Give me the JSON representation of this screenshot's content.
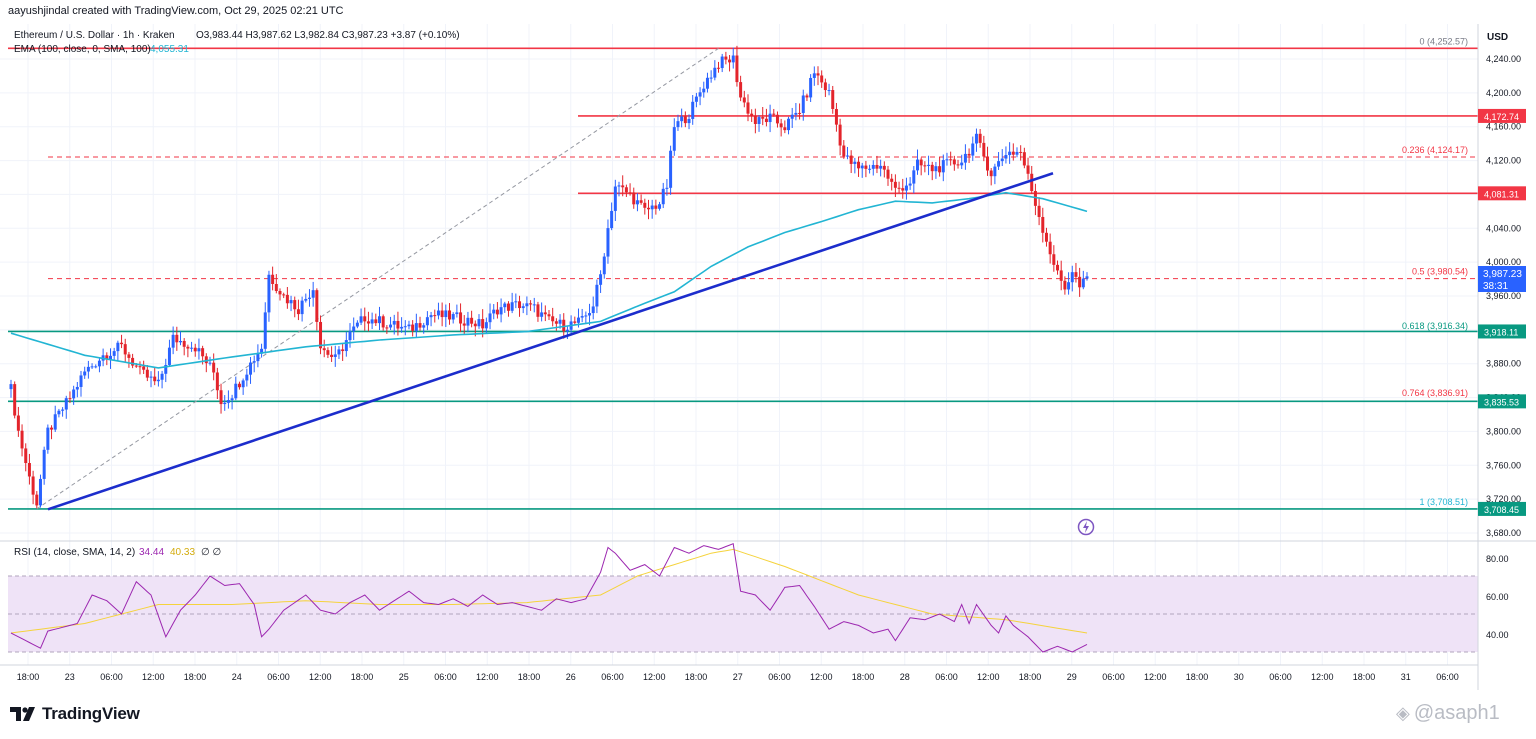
{
  "header": {
    "credit": "aayushjindal created with TradingView.com, Oct 29, 2025 02:21 UTC",
    "symbol": "Ethereum / U.S. Dollar · 1h · Kraken",
    "ohlc": "O3,983.44  H3,987.62  L3,982.84  C3,987.23  +3.87 (+0.10%)",
    "ema_label": "EMA (100, close, 0, SMA, 100)",
    "ema_value": "4,055.31",
    "currency": "USD"
  },
  "price_axis": {
    "ticks": [
      "4,240.00",
      "4,200.00",
      "4,160.00",
      "4,120.00",
      "4,080.00",
      "4,040.00",
      "4,000.00",
      "3,960.00",
      "3,880.00",
      "3,840.00",
      "3,800.00",
      "3,760.00",
      "3,720.00",
      "3,680.00"
    ],
    "current_price": "3,987.23",
    "countdown": "38:31"
  },
  "levels": [
    {
      "price": 4252.57,
      "label": "4,252.57",
      "color": "#f23645",
      "dash": false,
      "fib": "0 (4,252.57)",
      "show_tag": false
    },
    {
      "price": 4172.74,
      "label": "4,172.74",
      "color": "#f23645",
      "dash": false,
      "fib": "",
      "show_tag": true,
      "start_x": 578
    },
    {
      "price": 4124.17,
      "label": "4,124.17",
      "color": "#f23645",
      "dash": true,
      "fib": "0.236 (4,124.17)",
      "show_tag": false
    },
    {
      "price": 4081.31,
      "label": "4,081.31",
      "color": "#f23645",
      "dash": false,
      "fib": "",
      "show_tag": true,
      "start_x": 578
    },
    {
      "price": 3980.54,
      "label": "3,980.54",
      "color": "#f23645",
      "dash": true,
      "fib": "0.5 (3,980.54)",
      "show_tag": false
    },
    {
      "price": 3918.11,
      "label": "3,918.11",
      "color": "#089981",
      "dash": false,
      "fib": "",
      "show_tag": true
    },
    {
      "price": 3916.34,
      "label": "3,916.34",
      "color": "#089981",
      "dash": false,
      "fib": "0.618 (3,916.34)",
      "show_tag": false
    },
    {
      "price": 3835.53,
      "label": "3,835.53",
      "color": "#089981",
      "dash": false,
      "fib": "",
      "show_tag": true
    },
    {
      "price": 3836.91,
      "label": "3,836.91",
      "color": "#f23645",
      "dash": false,
      "fib": "0.764 (3,836.91)",
      "show_tag": false
    },
    {
      "price": 3708.45,
      "label": "3,708.45",
      "color": "#089981",
      "dash": false,
      "fib": "1 (3,708.51)",
      "show_tag": true
    }
  ],
  "rsi": {
    "label": "RSI (14, close, SMA, 14, 2)",
    "value": "34.44",
    "sma_value": "40.33",
    "extra": "∅  ∅",
    "ticks": [
      "80.00",
      "60.00",
      "40.00"
    ]
  },
  "time_axis": [
    "18:00",
    "23",
    "06:00",
    "12:00",
    "18:00",
    "24",
    "06:00",
    "12:00",
    "18:00",
    "25",
    "06:00",
    "12:00",
    "18:00",
    "26",
    "06:00",
    "12:00",
    "18:00",
    "27",
    "06:00",
    "12:00",
    "18:00",
    "28",
    "06:00",
    "12:00",
    "18:00",
    "29",
    "06:00",
    "12:00",
    "18:00",
    "30",
    "06:00",
    "12:00",
    "18:00",
    "31",
    "06:00"
  ],
  "footer": {
    "brand": "TradingView",
    "watermark": "@asaph1"
  },
  "colors": {
    "up": "#2962ff",
    "down": "#e3242b",
    "ema": "#22b5d3",
    "trendline": "#1c2dcc",
    "rsi_line": "#9c27b0",
    "rsi_sma": "#f5d33c",
    "rsi_band": "#efe3f7"
  },
  "chart_data": {
    "type": "candlestick",
    "title": "Ethereum / U.S. Dollar · 1h · Kraken",
    "ylim": [
      3660,
      4275
    ],
    "close_anchors": [
      [
        0,
        3850
      ],
      [
        2,
        3800
      ],
      [
        5,
        3745
      ],
      [
        7,
        3715
      ],
      [
        10,
        3800
      ],
      [
        16,
        3840
      ],
      [
        20,
        3870
      ],
      [
        25,
        3890
      ],
      [
        30,
        3900
      ],
      [
        35,
        3870
      ],
      [
        40,
        3855
      ],
      [
        44,
        3910
      ],
      [
        50,
        3900
      ],
      [
        55,
        3870
      ],
      [
        57,
        3835
      ],
      [
        60,
        3845
      ],
      [
        65,
        3880
      ],
      [
        68,
        3900
      ],
      [
        70,
        3985
      ],
      [
        74,
        3960
      ],
      [
        78,
        3945
      ],
      [
        82,
        3970
      ],
      [
        84,
        3900
      ],
      [
        88,
        3885
      ],
      [
        92,
        3915
      ],
      [
        96,
        3935
      ],
      [
        100,
        3930
      ],
      [
        104,
        3925
      ],
      [
        108,
        3920
      ],
      [
        114,
        3938
      ],
      [
        120,
        3935
      ],
      [
        125,
        3930
      ],
      [
        128,
        3925
      ],
      [
        132,
        3945
      ],
      [
        138,
        3950
      ],
      [
        142,
        3945
      ],
      [
        146,
        3930
      ],
      [
        150,
        3925
      ],
      [
        155,
        3930
      ],
      [
        158,
        3950
      ],
      [
        160,
        3985
      ],
      [
        162,
        4040
      ],
      [
        164,
        4090
      ],
      [
        168,
        4080
      ],
      [
        172,
        4060
      ],
      [
        176,
        4070
      ],
      [
        178,
        4090
      ],
      [
        180,
        4160
      ],
      [
        184,
        4175
      ],
      [
        188,
        4210
      ],
      [
        192,
        4235
      ],
      [
        196,
        4240
      ],
      [
        198,
        4195
      ],
      [
        202,
        4165
      ],
      [
        206,
        4170
      ],
      [
        210,
        4160
      ],
      [
        214,
        4180
      ],
      [
        216,
        4200
      ],
      [
        218,
        4225
      ],
      [
        222,
        4200
      ],
      [
        226,
        4125
      ],
      [
        230,
        4110
      ],
      [
        236,
        4115
      ],
      [
        240,
        4085
      ],
      [
        244,
        4095
      ],
      [
        246,
        4115
      ],
      [
        250,
        4110
      ],
      [
        254,
        4115
      ],
      [
        258,
        4120
      ],
      [
        262,
        4145
      ],
      [
        266,
        4105
      ],
      [
        270,
        4130
      ],
      [
        274,
        4130
      ],
      [
        276,
        4100
      ],
      [
        278,
        4070
      ],
      [
        280,
        4040
      ],
      [
        284,
        3985
      ],
      [
        286,
        3970
      ],
      [
        288,
        3990
      ],
      [
        290,
        3970
      ],
      [
        292,
        3980
      ]
    ],
    "ema_anchors": [
      [
        0,
        3916
      ],
      [
        20,
        3890
      ],
      [
        40,
        3875
      ],
      [
        60,
        3888
      ],
      [
        80,
        3900
      ],
      [
        100,
        3908
      ],
      [
        120,
        3914
      ],
      [
        140,
        3918
      ],
      [
        160,
        3930
      ],
      [
        170,
        3948
      ],
      [
        180,
        3965
      ],
      [
        190,
        3995
      ],
      [
        200,
        4018
      ],
      [
        210,
        4035
      ],
      [
        220,
        4048
      ],
      [
        230,
        4062
      ],
      [
        240,
        4072
      ],
      [
        250,
        4070
      ],
      [
        260,
        4075
      ],
      [
        270,
        4082
      ],
      [
        280,
        4075
      ],
      [
        292,
        4060
      ]
    ],
    "rsi_anchors": [
      [
        0,
        40
      ],
      [
        8,
        32
      ],
      [
        10,
        41
      ],
      [
        18,
        45
      ],
      [
        22,
        60
      ],
      [
        26,
        57
      ],
      [
        30,
        50
      ],
      [
        34,
        67
      ],
      [
        38,
        60
      ],
      [
        42,
        38
      ],
      [
        46,
        52
      ],
      [
        50,
        60
      ],
      [
        54,
        70
      ],
      [
        58,
        65
      ],
      [
        62,
        66
      ],
      [
        66,
        55
      ],
      [
        68,
        38
      ],
      [
        70,
        42
      ],
      [
        74,
        52
      ],
      [
        80,
        60
      ],
      [
        84,
        52
      ],
      [
        88,
        50
      ],
      [
        92,
        56
      ],
      [
        96,
        60
      ],
      [
        100,
        52
      ],
      [
        104,
        57
      ],
      [
        108,
        62
      ],
      [
        112,
        56
      ],
      [
        116,
        55
      ],
      [
        120,
        58
      ],
      [
        124,
        54
      ],
      [
        128,
        60
      ],
      [
        132,
        55
      ],
      [
        136,
        56
      ],
      [
        140,
        54
      ],
      [
        144,
        52
      ],
      [
        148,
        58
      ],
      [
        152,
        56
      ],
      [
        156,
        58
      ],
      [
        160,
        72
      ],
      [
        162,
        85
      ],
      [
        164,
        82
      ],
      [
        168,
        73
      ],
      [
        172,
        76
      ],
      [
        176,
        70
      ],
      [
        180,
        85
      ],
      [
        184,
        82
      ],
      [
        188,
        86
      ],
      [
        192,
        84
      ],
      [
        196,
        87
      ],
      [
        198,
        62
      ],
      [
        202,
        60
      ],
      [
        206,
        52
      ],
      [
        210,
        64
      ],
      [
        214,
        65
      ],
      [
        218,
        54
      ],
      [
        222,
        42
      ],
      [
        226,
        46
      ],
      [
        230,
        44
      ],
      [
        234,
        40
      ],
      [
        238,
        42
      ],
      [
        240,
        36
      ],
      [
        244,
        48
      ],
      [
        248,
        47
      ],
      [
        252,
        50
      ],
      [
        256,
        46
      ],
      [
        258,
        55
      ],
      [
        260,
        45
      ],
      [
        262,
        55
      ],
      [
        266,
        44
      ],
      [
        268,
        40
      ],
      [
        270,
        49
      ],
      [
        272,
        44
      ],
      [
        276,
        38
      ],
      [
        280,
        30
      ],
      [
        284,
        33
      ],
      [
        288,
        30
      ],
      [
        292,
        34
      ]
    ],
    "rsi_sma_anchors": [
      [
        0,
        40
      ],
      [
        20,
        45
      ],
      [
        40,
        55
      ],
      [
        60,
        55
      ],
      [
        80,
        57
      ],
      [
        100,
        55
      ],
      [
        120,
        55
      ],
      [
        140,
        56
      ],
      [
        160,
        60
      ],
      [
        170,
        70
      ],
      [
        180,
        76
      ],
      [
        190,
        82
      ],
      [
        196,
        84
      ],
      [
        210,
        75
      ],
      [
        230,
        60
      ],
      [
        250,
        50
      ],
      [
        270,
        47
      ],
      [
        292,
        40
      ]
    ],
    "candle_count": 293
  }
}
